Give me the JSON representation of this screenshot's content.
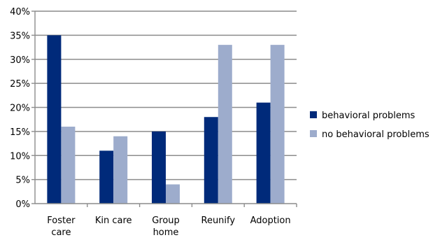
{
  "chart_data": {
    "type": "bar",
    "categories": [
      [
        "Foster",
        "care"
      ],
      [
        "Kin care"
      ],
      [
        "Group",
        "home"
      ],
      [
        "Reunify"
      ],
      [
        "Adoption"
      ]
    ],
    "series": [
      {
        "name": "behavioral problems",
        "color": "#002a7a",
        "values": [
          35,
          11,
          15,
          18,
          21
        ]
      },
      {
        "name": "no behavioral problems",
        "color": "#9daccc",
        "values": [
          16,
          14,
          4,
          33,
          33
        ]
      }
    ],
    "ylim": [
      0,
      40
    ],
    "yticks": [
      "0%",
      "5%",
      "10%",
      "15%",
      "20%",
      "25%",
      "30%",
      "35%",
      "40%"
    ],
    "grid": true,
    "legend": "right",
    "title": "",
    "xlabel": "",
    "ylabel": ""
  }
}
